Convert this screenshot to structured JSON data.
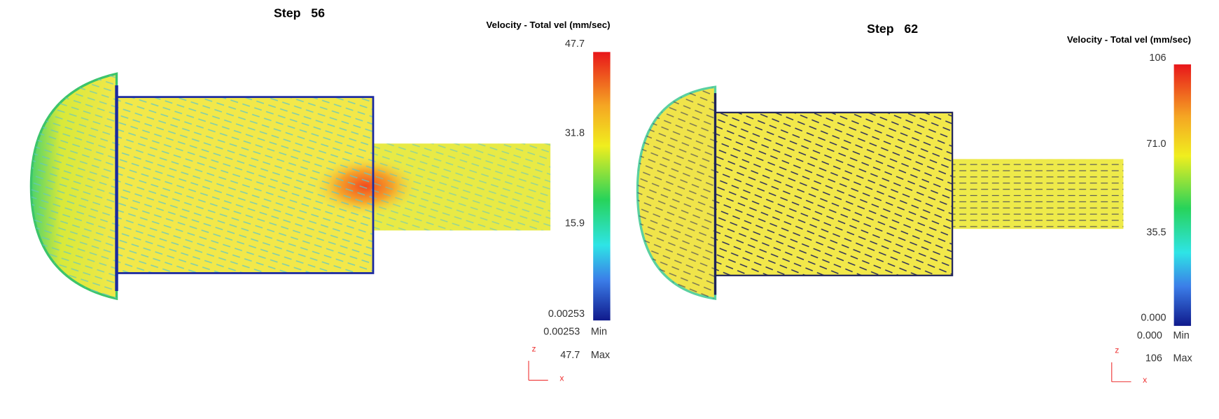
{
  "panels": [
    {
      "title": "Step   56",
      "legend_title": "Velocity - Total vel (mm/sec)",
      "scale_labels": [
        "47.7",
        "31.8",
        "15.9",
        "0.00253"
      ],
      "min_value": "0.00253",
      "min_label": "Min",
      "max_value": "47.7",
      "max_label": "Max",
      "axis_z": "z",
      "axis_x": "x"
    },
    {
      "title": "Step   62",
      "legend_title": "Velocity - Total vel (mm/sec)",
      "scale_labels": [
        "106",
        "71.0",
        "35.5",
        "0.000"
      ],
      "min_value": "0.000",
      "min_label": "Min",
      "max_value": "106",
      "max_label": "Max",
      "axis_z": "z",
      "axis_x": "x"
    }
  ]
}
